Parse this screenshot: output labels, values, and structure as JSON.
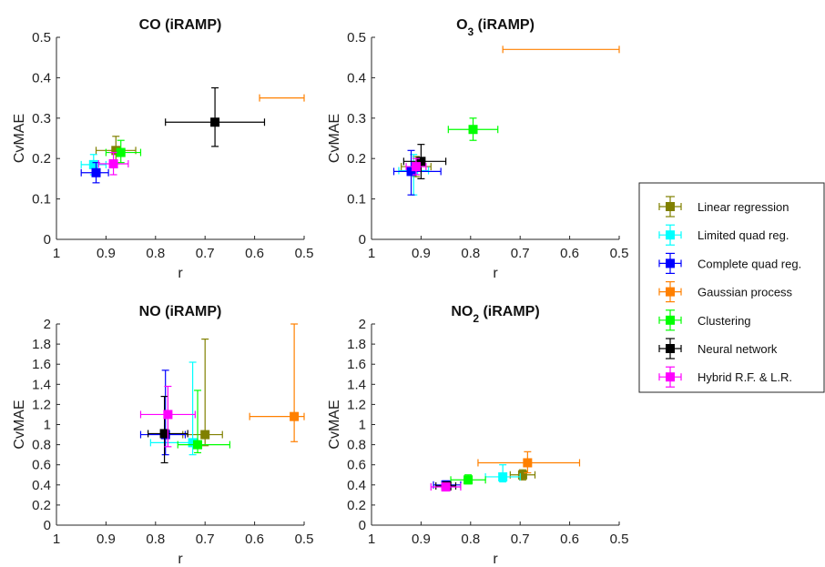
{
  "chart_data": [
    {
      "type": "scatter",
      "title": "CO (iRAMP)",
      "xlabel": "r",
      "ylabel": "CvMAE",
      "xlim": [
        1,
        0.5
      ],
      "ylim": [
        0,
        0.5
      ],
      "x_reversed": true,
      "xticks": [
        "1",
        "0.9",
        "0.8",
        "0.7",
        "0.6",
        "0.5"
      ],
      "yticks": [
        "0",
        "0.1",
        "0.2",
        "0.3",
        "0.4",
        "0.5"
      ],
      "series": [
        {
          "name": "Linear regression",
          "x": 0.88,
          "y": 0.22,
          "xerr": [
            0.92,
            0.84
          ],
          "yerr": [
            0.19,
            0.255
          ]
        },
        {
          "name": "Limited quad reg.",
          "x": 0.925,
          "y": 0.185,
          "xerr": [
            0.95,
            0.9
          ],
          "yerr": [
            0.16,
            0.21
          ]
        },
        {
          "name": "Complete quad reg.",
          "x": 0.92,
          "y": 0.165,
          "xerr": [
            0.95,
            0.895
          ],
          "yerr": [
            0.14,
            0.19
          ]
        },
        {
          "name": "Gaussian process",
          "x": null,
          "y": 0.35,
          "xerr": [
            0.59,
            0.5
          ],
          "yerr": null
        },
        {
          "name": "Clustering",
          "x": 0.87,
          "y": 0.215,
          "xerr": [
            0.9,
            0.83
          ],
          "yerr": [
            0.19,
            0.245
          ]
        },
        {
          "name": "Neural network",
          "x": 0.68,
          "y": 0.29,
          "xerr": [
            0.78,
            0.58
          ],
          "yerr": [
            0.23,
            0.375
          ]
        },
        {
          "name": "Hybrid R.F. & L.R.",
          "x": 0.885,
          "y": 0.187,
          "xerr": [
            0.915,
            0.855
          ],
          "yerr": [
            0.16,
            0.215
          ]
        }
      ]
    },
    {
      "type": "scatter",
      "title": "O3 (iRAMP)",
      "title_main": "O",
      "title_sub": "3",
      "title_rest": " (iRAMP)",
      "xlabel": "r",
      "ylabel": "CvMAE",
      "xlim": [
        1,
        0.5
      ],
      "ylim": [
        0,
        0.5
      ],
      "x_reversed": true,
      "xticks": [
        "1",
        "0.9",
        "0.8",
        "0.7",
        "0.6",
        "0.5"
      ],
      "yticks": [
        "0",
        "0.1",
        "0.2",
        "0.3",
        "0.4",
        "0.5"
      ],
      "series": [
        {
          "name": "Linear regression",
          "x": 0.91,
          "y": 0.18,
          "xerr": [
            0.94,
            0.88
          ],
          "yerr": [
            0.155,
            0.205
          ]
        },
        {
          "name": "Limited quad reg.",
          "x": 0.915,
          "y": 0.17,
          "xerr": [
            0.945,
            0.885
          ],
          "yerr": [
            0.11,
            0.21
          ]
        },
        {
          "name": "Complete quad reg.",
          "x": 0.92,
          "y": 0.168,
          "xerr": [
            0.955,
            0.86
          ],
          "yerr": [
            0.11,
            0.22
          ]
        },
        {
          "name": "Gaussian process",
          "x": null,
          "y": 0.47,
          "xerr": [
            0.735,
            0.5
          ],
          "yerr": null
        },
        {
          "name": "Clustering",
          "x": 0.795,
          "y": 0.272,
          "xerr": [
            0.845,
            0.745
          ],
          "yerr": [
            0.245,
            0.3
          ]
        },
        {
          "name": "Neural network",
          "x": 0.9,
          "y": 0.193,
          "xerr": [
            0.935,
            0.85
          ],
          "yerr": [
            0.15,
            0.235
          ]
        },
        {
          "name": "Hybrid R.F. & L.R.",
          "x": 0.91,
          "y": 0.18,
          "xerr": [
            0.93,
            0.89
          ],
          "yerr": [
            0.16,
            0.2
          ]
        }
      ]
    },
    {
      "type": "scatter",
      "title": "NO (iRAMP)",
      "xlabel": "r",
      "ylabel": "CvMAE",
      "xlim": [
        1,
        0.5
      ],
      "ylim": [
        0,
        2
      ],
      "x_reversed": true,
      "xticks": [
        "1",
        "0.9",
        "0.8",
        "0.7",
        "0.6",
        "0.5"
      ],
      "yticks": [
        "0",
        "0.2",
        "0.4",
        "0.6",
        "0.8",
        "1",
        "1.2",
        "1.4",
        "1.6",
        "1.8",
        "2"
      ],
      "series": [
        {
          "name": "Linear regression",
          "x": 0.7,
          "y": 0.9,
          "xerr": [
            0.745,
            0.665
          ],
          "yerr": [
            0.79,
            1.85
          ]
        },
        {
          "name": "Limited quad reg.",
          "x": 0.725,
          "y": 0.82,
          "xerr": [
            0.81,
            0.715
          ],
          "yerr": [
            0.7,
            1.62
          ]
        },
        {
          "name": "Complete quad reg.",
          "x": 0.78,
          "y": 0.9,
          "xerr": [
            0.83,
            0.74
          ],
          "yerr": [
            0.7,
            1.54
          ]
        },
        {
          "name": "Gaussian process",
          "x": 0.52,
          "y": 1.08,
          "xerr": [
            0.61,
            0.5
          ],
          "yerr": [
            0.83,
            2.0
          ]
        },
        {
          "name": "Clustering",
          "x": 0.715,
          "y": 0.8,
          "xerr": [
            0.755,
            0.65
          ],
          "yerr": [
            0.72,
            1.34
          ]
        },
        {
          "name": "Neural network",
          "x": 0.782,
          "y": 0.91,
          "xerr": [
            0.815,
            0.735
          ],
          "yerr": [
            0.62,
            1.28
          ]
        },
        {
          "name": "Hybrid R.F. & L.R.",
          "x": 0.775,
          "y": 1.1,
          "xerr": [
            0.83,
            0.72
          ],
          "yerr": [
            0.78,
            1.38
          ]
        }
      ]
    },
    {
      "type": "scatter",
      "title": "NO2 (iRAMP)",
      "title_main": "NO",
      "title_sub": "2",
      "title_rest": " (iRAMP)",
      "xlabel": "r",
      "ylabel": "CvMAE",
      "xlim": [
        1,
        0.5
      ],
      "ylim": [
        0,
        2
      ],
      "x_reversed": true,
      "xticks": [
        "1",
        "0.9",
        "0.8",
        "0.7",
        "0.6",
        "0.5"
      ],
      "yticks": [
        "0",
        "0.2",
        "0.4",
        "0.6",
        "0.8",
        "1",
        "1.2",
        "1.4",
        "1.6",
        "1.8",
        "2"
      ],
      "series": [
        {
          "name": "Linear regression",
          "x": 0.695,
          "y": 0.5,
          "xerr": [
            0.72,
            0.67
          ],
          "yerr": [
            0.45,
            0.55
          ]
        },
        {
          "name": "Limited quad reg.",
          "x": 0.735,
          "y": 0.48,
          "xerr": [
            0.77,
            0.7
          ],
          "yerr": [
            0.43,
            0.6
          ]
        },
        {
          "name": "Complete quad reg.",
          "x": 0.85,
          "y": 0.4,
          "xerr": [
            0.875,
            0.82
          ],
          "yerr": [
            0.37,
            0.44
          ]
        },
        {
          "name": "Gaussian process",
          "x": 0.685,
          "y": 0.62,
          "xerr": [
            0.785,
            0.58
          ],
          "yerr": [
            0.52,
            0.73
          ]
        },
        {
          "name": "Clustering",
          "x": 0.805,
          "y": 0.45,
          "xerr": [
            0.84,
            0.77
          ],
          "yerr": [
            0.41,
            0.5
          ]
        },
        {
          "name": "Neural network",
          "x": 0.848,
          "y": 0.39,
          "xerr": [
            0.87,
            0.83
          ],
          "yerr": [
            0.36,
            0.42
          ]
        },
        {
          "name": "Hybrid R.F. & L.R.",
          "x": 0.85,
          "y": 0.38,
          "xerr": [
            0.88,
            0.82
          ],
          "yerr": [
            0.34,
            0.42
          ]
        }
      ]
    }
  ],
  "legend": {
    "placement": "right",
    "entries": [
      {
        "label": "Linear regression",
        "color": "#808000"
      },
      {
        "label": "Limited quad reg.",
        "color": "#00ffff"
      },
      {
        "label": "Complete quad reg.",
        "color": "#0000ff"
      },
      {
        "label": "Gaussian process",
        "color": "#ff8000"
      },
      {
        "label": "Clustering",
        "color": "#00ff00"
      },
      {
        "label": "Neural network",
        "color": "#000000"
      },
      {
        "label": "Hybrid R.F. & L.R.",
        "color": "#ff00ff"
      }
    ]
  }
}
